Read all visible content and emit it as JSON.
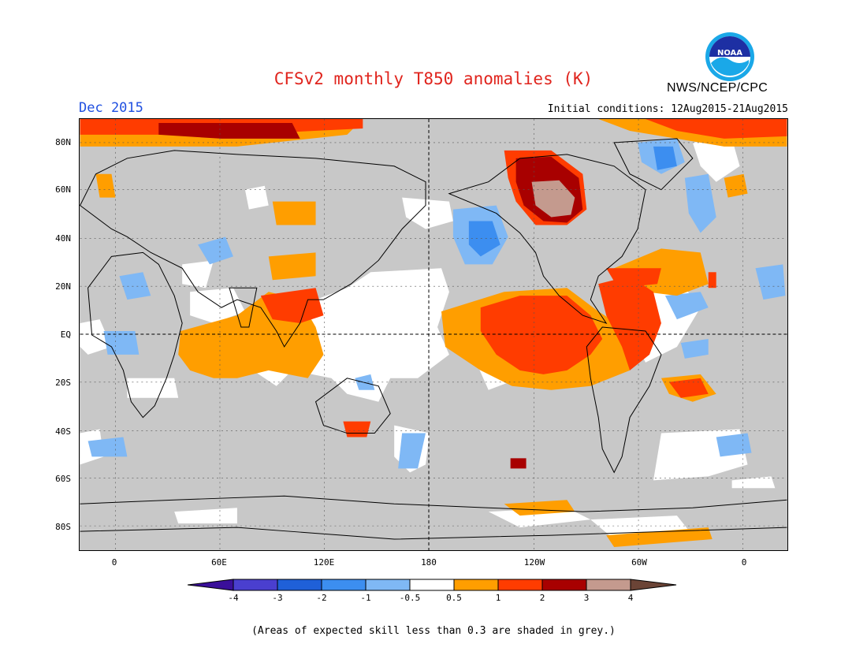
{
  "header": {
    "title": "CFSv2 monthly T850 anomalies (K)",
    "month": "Dec 2015",
    "initial_conditions": "Initial conditions: 12Aug2015-21Aug2015",
    "agency": "NWS/NCEP/CPC",
    "logo_text": "NOAA"
  },
  "map": {
    "lat_labels": [
      "80N",
      "60N",
      "40N",
      "20N",
      "EQ",
      "20S",
      "40S",
      "60S",
      "80S"
    ],
    "lon_labels": [
      "0",
      "60E",
      "120E",
      "180",
      "120W",
      "60W",
      "0"
    ]
  },
  "colorbar": {
    "labels": [
      "-4",
      "-3",
      "-2",
      "-1",
      "-0.5",
      "0.5",
      "1",
      "2",
      "3",
      "4"
    ],
    "colors": {
      "lt_-4": "#3a0f9a",
      "-4_-3": "#4a3fcf",
      "-3_-2": "#1f60d8",
      "-2_-1": "#3c8ef0",
      "-1_-0.5": "#7fb8f5",
      "-0.5_0.5": "#ffffff",
      "0.5_1": "#ff9e00",
      "1_2": "#ff3c00",
      "2_3": "#a80000",
      "3_4": "#c49a8e",
      "gt_4": "#6b4436"
    }
  },
  "footnote": "(Areas of expected skill less than 0.3 are shaded in grey.)",
  "legend_colors": {
    "low_skill": "#c8c8c8"
  }
}
